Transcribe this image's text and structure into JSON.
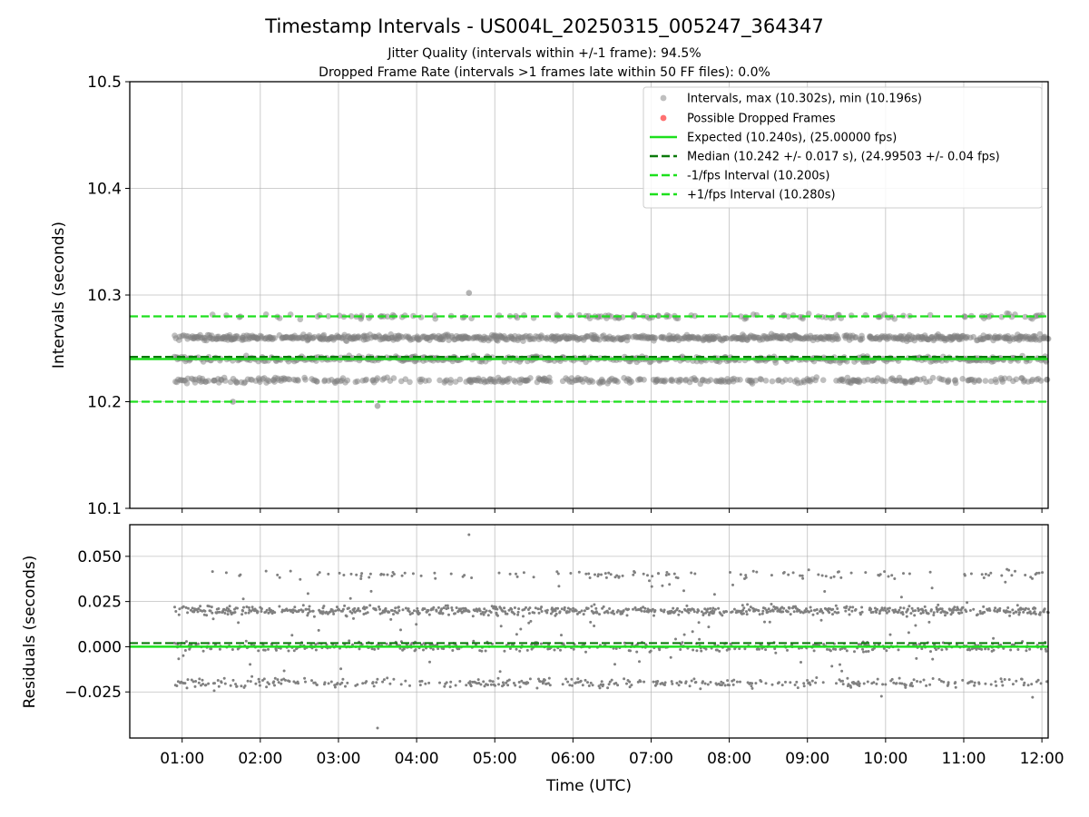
{
  "figure": {
    "title": "Timestamp Intervals - US004L_20250315_005247_364347",
    "subtitle_1": "Jitter Quality (intervals within +/-1 frame): 94.5%",
    "subtitle_2": "Dropped Frame Rate (intervals >1 frames late within 50 FF files): 0.0%"
  },
  "colors": {
    "points": "#808080",
    "dropped": "#ff4d4d",
    "expected": "#1de01d",
    "median": "#0b7a0b",
    "bounds": "#1de01d"
  },
  "chart_data": [
    {
      "type": "scatter",
      "title": "",
      "xlabel": "",
      "ylabel": "Intervals (seconds)",
      "xlim_hours": [
        0.33,
        12.08
      ],
      "ylim": [
        10.1,
        10.5
      ],
      "yticks": [
        "10.1",
        "10.2",
        "10.3",
        "10.4",
        "10.5"
      ],
      "xticks_hours": [
        1,
        2,
        3,
        4,
        5,
        6,
        7,
        8,
        9,
        10,
        11,
        12
      ],
      "grid": true,
      "legend_position": "top-right",
      "legend": [
        "Intervals, max (10.302s), min (10.196s)",
        "Possible Dropped Frames",
        "Expected (10.240s), (25.00000 fps)",
        "Median (10.242 +/- 0.017 s), (24.99503 +/- 0.04 fps)",
        "-1/fps Interval (10.200s)",
        "+1/fps Interval (10.280s)"
      ],
      "series": [
        {
          "name": "Intervals",
          "x_range_hours": [
            0.9,
            12.08
          ],
          "levels": [
            10.22,
            10.24,
            10.26,
            10.28
          ],
          "max": 10.302,
          "min": 10.196,
          "outliers": [
            {
              "x_hours": 4.67,
              "y": 10.302
            },
            {
              "x_hours": 3.5,
              "y": 10.196
            },
            {
              "x_hours": 1.65,
              "y": 10.2
            }
          ]
        },
        {
          "name": "Possible Dropped Frames",
          "values": []
        }
      ],
      "reference_lines": {
        "expected": 10.24,
        "median": 10.242,
        "minus_1_fps": 10.2,
        "plus_1_fps": 10.28
      }
    },
    {
      "type": "scatter",
      "title": "",
      "xlabel": "Time (UTC)",
      "ylabel": "Residuals (seconds)",
      "xlim_hours": [
        0.33,
        12.08
      ],
      "ylim": [
        -0.0505,
        0.0675
      ],
      "yticks": [
        "−0.025",
        "0.000",
        "0.025",
        "0.050"
      ],
      "xtick_labels": [
        "01:00",
        "02:00",
        "03:00",
        "04:00",
        "05:00",
        "06:00",
        "07:00",
        "08:00",
        "09:00",
        "10:00",
        "11:00",
        "12:00"
      ],
      "grid": true,
      "series": [
        {
          "name": "Residuals",
          "x_range_hours": [
            0.9,
            12.08
          ],
          "levels": [
            -0.02,
            0.0,
            0.02,
            0.04
          ],
          "outliers": [
            {
              "x_hours": 4.67,
              "y": 0.062
            },
            {
              "x_hours": 3.5,
              "y": -0.045
            }
          ]
        }
      ],
      "reference_lines": {
        "expected": 0.0,
        "median": 0.002
      }
    }
  ]
}
